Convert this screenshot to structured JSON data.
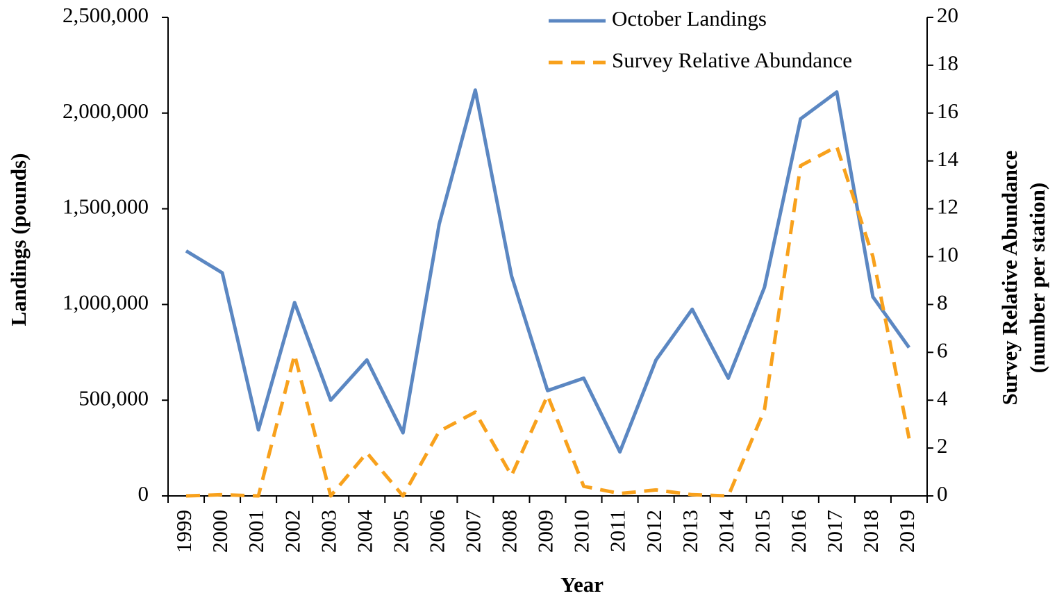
{
  "chart_data": {
    "type": "line",
    "xlabel": "Year",
    "ylabel": "Landings (pounds)",
    "y2label": [
      "Survey Relative Abundance",
      "(number per station)"
    ],
    "categories": [
      "1999",
      "2000",
      "2001",
      "2002",
      "2003",
      "2004",
      "2005",
      "2006",
      "2007",
      "2008",
      "2009",
      "2010",
      "2011",
      "2012",
      "2013",
      "2014",
      "2015",
      "2016",
      "2017",
      "2018",
      "2019"
    ],
    "series": [
      {
        "name": "October Landings",
        "color": "#5b87c2",
        "dash": "solid",
        "axis": "y",
        "values": [
          1280000,
          1165000,
          345000,
          1010000,
          500000,
          710000,
          330000,
          1420000,
          2120000,
          1150000,
          550000,
          615000,
          230000,
          710000,
          975000,
          615000,
          1090000,
          1970000,
          2110000,
          1040000,
          775000
        ]
      },
      {
        "name": "Survey Relative Abundance",
        "color": "#f8a11c",
        "dash": "dashed",
        "axis": "y2",
        "values": [
          0,
          0.05,
          0,
          5.9,
          0,
          1.8,
          0,
          2.7,
          3.5,
          0.85,
          4.2,
          0.4,
          0.1,
          0.25,
          0.05,
          0,
          3.6,
          13.8,
          14.6,
          10.0,
          2.4
        ]
      }
    ],
    "ylim": [
      0,
      2500000
    ],
    "yticks": [
      0,
      {
        "value": 500000,
        "label": "500,000"
      },
      {
        "value": 1000000,
        "label": "1,000,000"
      },
      {
        "value": 1500000,
        "label": "1,500,000"
      },
      {
        "value": 2000000,
        "label": "2,000,000"
      },
      {
        "value": 2500000,
        "label": "2,500,000"
      }
    ],
    "y2lim": [
      0,
      20
    ],
    "y2ticks": [
      0,
      2,
      4,
      6,
      8,
      10,
      12,
      14,
      16,
      18,
      20
    ],
    "grid": false,
    "legend": "upper right"
  }
}
